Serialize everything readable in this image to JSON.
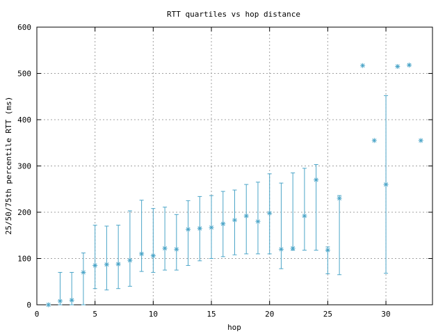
{
  "chart_data": {
    "type": "scatter",
    "title": "RTT quartiles vs hop distance",
    "xlabel": "hop",
    "ylabel": "25/50/75th percentile RTT (ms)",
    "xlim": [
      0,
      34
    ],
    "ylim": [
      0,
      600
    ],
    "xticks": [
      0,
      5,
      10,
      15,
      20,
      25,
      30
    ],
    "yticks": [
      0,
      100,
      200,
      300,
      400,
      500,
      600
    ],
    "grid": true,
    "marker": "asterisk",
    "color": "#4ba5c8",
    "points": [
      {
        "hop": 1,
        "p25": 0,
        "p50": 0,
        "p75": 0
      },
      {
        "hop": 2,
        "p25": 0,
        "p50": 8,
        "p75": 70
      },
      {
        "hop": 3,
        "p25": 0,
        "p50": 10,
        "p75": 70
      },
      {
        "hop": 4,
        "p25": 0,
        "p50": 70,
        "p75": 112
      },
      {
        "hop": 5,
        "p25": 35,
        "p50": 85,
        "p75": 172
      },
      {
        "hop": 6,
        "p25": 32,
        "p50": 87,
        "p75": 170
      },
      {
        "hop": 7,
        "p25": 35,
        "p50": 88,
        "p75": 172
      },
      {
        "hop": 8,
        "p25": 40,
        "p50": 96,
        "p75": 203
      },
      {
        "hop": 9,
        "p25": 72,
        "p50": 110,
        "p75": 226
      },
      {
        "hop": 10,
        "p25": 70,
        "p50": 106,
        "p75": 208
      },
      {
        "hop": 11,
        "p25": 75,
        "p50": 122,
        "p75": 211
      },
      {
        "hop": 12,
        "p25": 75,
        "p50": 120,
        "p75": 195
      },
      {
        "hop": 13,
        "p25": 85,
        "p50": 163,
        "p75": 225
      },
      {
        "hop": 14,
        "p25": 95,
        "p50": 165,
        "p75": 234
      },
      {
        "hop": 15,
        "p25": 100,
        "p50": 167,
        "p75": 236
      },
      {
        "hop": 16,
        "p25": 104,
        "p50": 175,
        "p75": 245
      },
      {
        "hop": 17,
        "p25": 108,
        "p50": 183,
        "p75": 248
      },
      {
        "hop": 18,
        "p25": 110,
        "p50": 192,
        "p75": 260
      },
      {
        "hop": 19,
        "p25": 110,
        "p50": 180,
        "p75": 265
      },
      {
        "hop": 20,
        "p25": 110,
        "p50": 198,
        "p75": 283
      },
      {
        "hop": 21,
        "p25": 78,
        "p50": 120,
        "p75": 263
      },
      {
        "hop": 22,
        "p25": 118,
        "p50": 122,
        "p75": 285
      },
      {
        "hop": 23,
        "p25": 118,
        "p50": 192,
        "p75": 295
      },
      {
        "hop": 24,
        "p25": 118,
        "p50": 270,
        "p75": 303
      },
      {
        "hop": 25,
        "p25": 67,
        "p50": 118,
        "p75": 125
      },
      {
        "hop": 26,
        "p25": 65,
        "p50": 230,
        "p75": 236
      },
      {
        "hop": 28,
        "p25": 517,
        "p50": 517,
        "p75": 517
      },
      {
        "hop": 29,
        "p25": 355,
        "p50": 355,
        "p75": 355
      },
      {
        "hop": 30,
        "p25": 68,
        "p50": 260,
        "p75": 452
      },
      {
        "hop": 31,
        "p25": 515,
        "p50": 515,
        "p75": 515
      },
      {
        "hop": 32,
        "p25": 518,
        "p50": 518,
        "p75": 518
      },
      {
        "hop": 33,
        "p25": 355,
        "p50": 355,
        "p75": 355
      }
    ]
  }
}
